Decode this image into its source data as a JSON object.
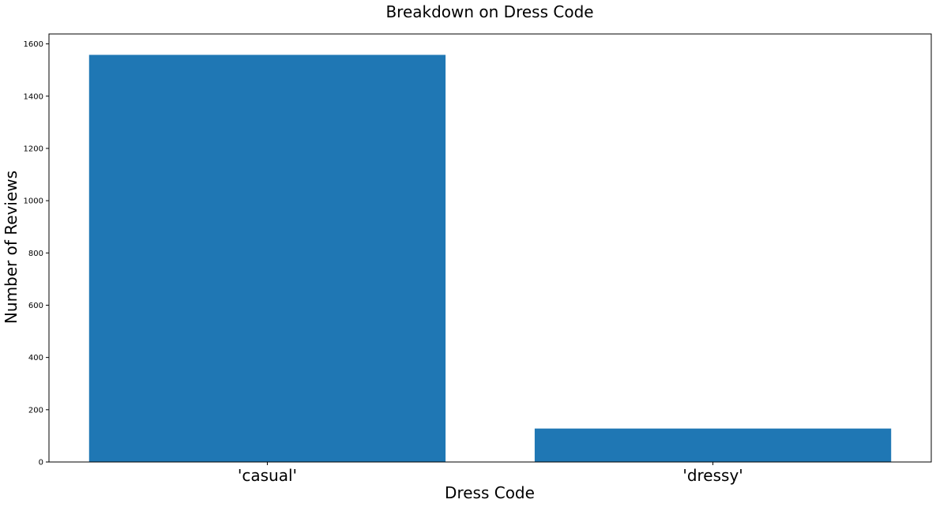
{
  "chart_data": {
    "type": "bar",
    "title": "Breakdown on Dress Code",
    "xlabel": "Dress Code",
    "ylabel": "Number of Reviews",
    "categories": [
      "'casual'",
      "'dressy'"
    ],
    "values": [
      1558,
      128
    ],
    "ylim": [
      0,
      1638
    ],
    "yticks": [
      0,
      200,
      400,
      600,
      800,
      1000,
      1200,
      1400,
      1600
    ],
    "grid": false,
    "bar_color": "#1f77b4"
  }
}
